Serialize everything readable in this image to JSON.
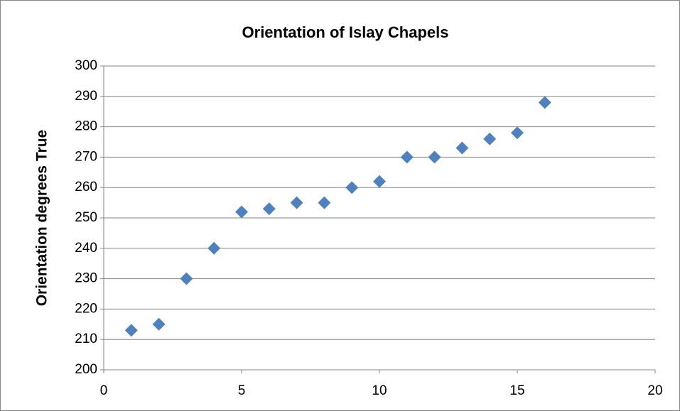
{
  "chart_data": {
    "type": "scatter",
    "title": "Orientation of Islay Chapels",
    "y_label": "Orientation degrees True",
    "x": [
      1,
      2,
      3,
      4,
      5,
      6,
      7,
      8,
      9,
      10,
      11,
      12,
      13,
      14,
      15,
      16
    ],
    "values": [
      213,
      215,
      230,
      240,
      252,
      253,
      255,
      255,
      260,
      262,
      270,
      270,
      273,
      276,
      278,
      288
    ],
    "color": "#4f81bd",
    "xlim": [
      0,
      20
    ],
    "xticks": [
      0,
      5,
      10,
      15,
      20
    ],
    "ylim": [
      200,
      300
    ],
    "yticks": [
      200,
      210,
      220,
      230,
      240,
      250,
      260,
      270,
      280,
      290,
      300
    ],
    "grid": true
  }
}
